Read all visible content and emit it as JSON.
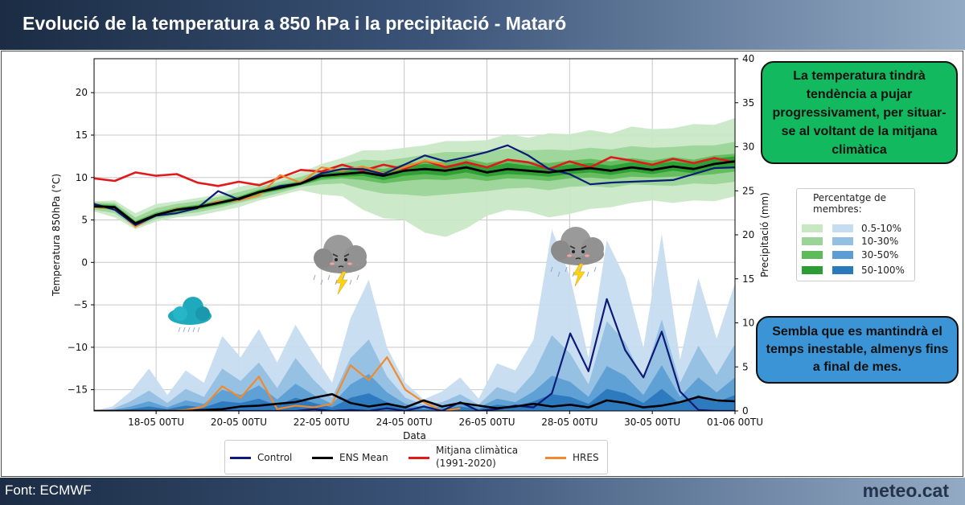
{
  "title": "Evolució de la temperatura a 850 hPa i la precipitació - Mataró",
  "footer": {
    "source": "Font: ECMWF",
    "brand": "meteo.cat"
  },
  "callouts": {
    "temperature": "La temperatura tindrà tendència a pujar progressivament, per situar-se al voltant de la mitjana climàtica",
    "precipitation": "Sembla que es mantindrà el temps inestable, almenys fins a final de mes."
  },
  "percentile_legend": {
    "title": "Percentatge de membres:",
    "rows": [
      "0.5-10%",
      "10-30%",
      "30-50%",
      "50-100%"
    ]
  },
  "series_legend": [
    {
      "label": "Control",
      "color": "#0c1a78"
    },
    {
      "label": "ENS Mean",
      "color": "#000000"
    },
    {
      "label": "Mitjana climàtica (1991-2020)",
      "label_line1": "Mitjana climàtica",
      "label_line2": "(1991-2020)",
      "color": "#e0191b"
    },
    {
      "label": "HRES",
      "color": "#f08a2c"
    }
  ],
  "icons": [
    "rain-cloud-icon",
    "thunderstorm-cloud-icon",
    "thunderstorm-cloud-icon"
  ],
  "colors": {
    "green_bands": [
      "#c8e8c4",
      "#9bd497",
      "#5fbb5a",
      "#2a9d33"
    ],
    "blue_bands": [
      "#c6dcf0",
      "#93bfe2",
      "#5c9ed4",
      "#2b78bd"
    ]
  },
  "chart_data": {
    "type": "line",
    "xlabel": "Data",
    "ylabel_left": "Temperatura 850hPa (°C)",
    "ylabel_right": "Precipitació (mm)",
    "x_range": [
      "2025-05-16T12",
      "2025-06-01T00"
    ],
    "x_ticks": [
      "18-05 00TU",
      "20-05 00TU",
      "22-05 00TU",
      "24-05 00TU",
      "26-05 00TU",
      "28-05 00TU",
      "30-05 00TU",
      "01-06 00TU"
    ],
    "y_left_range": [
      -17.5,
      24
    ],
    "y_left_ticks": [
      20,
      15,
      10,
      5,
      0,
      -5,
      -10,
      -15
    ],
    "y_right_range": [
      0,
      40
    ],
    "y_right_ticks": [
      40,
      35,
      30,
      25,
      20,
      15,
      10,
      5,
      0
    ],
    "grid": true,
    "x_days": [
      0,
      0.5,
      1,
      1.5,
      2,
      2.5,
      3,
      3.5,
      4,
      4.5,
      5,
      5.5,
      6,
      6.5,
      7,
      7.5,
      8,
      8.5,
      9,
      9.5,
      10,
      10.5,
      11,
      11.5,
      12,
      12.5,
      13,
      13.5,
      14,
      14.5,
      15,
      15.5
    ],
    "temperature_series": {
      "climatological_mean": [
        9.9,
        9.6,
        10.6,
        10.2,
        10.4,
        9.4,
        9.0,
        9.5,
        9.1,
        10.0,
        10.9,
        10.7,
        11.5,
        10.8,
        11.5,
        11.0,
        12.0,
        11.2,
        11.8,
        11.2,
        12.1,
        11.8,
        11.0,
        11.9,
        11.2,
        12.4,
        12.0,
        11.5,
        12.2,
        11.7,
        12.3,
        11.8
      ],
      "ens_mean": [
        6.6,
        6.5,
        4.6,
        5.6,
        6.2,
        6.5,
        7.0,
        7.5,
        8.3,
        8.8,
        9.3,
        10.2,
        10.4,
        10.6,
        10.2,
        10.8,
        11.0,
        10.8,
        11.2,
        10.6,
        11.0,
        10.8,
        10.6,
        10.9,
        11.1,
        10.8,
        11.2,
        10.9,
        11.3,
        11.0,
        11.6,
        11.9
      ],
      "control": [
        6.9,
        6.2,
        4.4,
        5.5,
        5.8,
        6.4,
        8.4,
        7.4,
        8.3,
        9.0,
        9.3,
        10.5,
        11.0,
        11.0,
        10.4,
        11.5,
        12.6,
        11.9,
        12.4,
        13.0,
        13.8,
        12.6,
        11.0,
        10.4,
        9.2,
        9.4,
        9.5,
        9.6,
        9.7,
        10.4,
        11.1,
        11.2
      ],
      "hres": [
        6.5,
        6.4,
        4.2,
        5.6,
        6.3,
        6.4,
        7.2,
        7.3,
        7.9,
        10.3,
        9.4,
        11.2,
        10.8,
        11.3,
        10.5,
        11.2,
        12.0,
        11.5
      ]
    },
    "temperature_percentile_bands": [
      {
        "level": "0.5-10%",
        "low": [
          6.0,
          5.3,
          3.9,
          4.8,
          5.3,
          5.5,
          6.0,
          6.5,
          7.3,
          7.9,
          8.5,
          8.0,
          7.8,
          6.2,
          5.2,
          5.0,
          3.5,
          3.0,
          4.0,
          5.5,
          6.2,
          6.0,
          5.3,
          5.7,
          6.3,
          6.5,
          7.0,
          7.3,
          7.0,
          7.3,
          7.2,
          7.8
        ],
        "high": [
          7.2,
          7.3,
          5.8,
          6.9,
          7.2,
          7.6,
          8.0,
          8.9,
          9.4,
          10.0,
          10.6,
          11.6,
          12.3,
          13.2,
          13.2,
          13.5,
          13.8,
          14.3,
          14.3,
          14.4,
          15.1,
          14.7,
          15.2,
          15.1,
          15.6,
          15.2,
          16.0,
          15.7,
          15.8,
          16.3,
          16.2,
          17.0
        ]
      },
      {
        "level": "10-30%",
        "low": [
          6.2,
          5.8,
          4.1,
          5.1,
          5.6,
          5.9,
          6.4,
          7.0,
          7.6,
          8.2,
          8.9,
          9.2,
          9.3,
          8.6,
          8.1,
          8.0,
          7.8,
          8.0,
          8.2,
          8.4,
          8.7,
          8.8,
          8.5,
          8.9,
          9.0,
          8.8,
          9.2,
          9.1,
          9.0,
          9.3,
          9.2,
          9.5
        ],
        "high": [
          7.1,
          7.0,
          5.3,
          6.4,
          6.9,
          7.2,
          7.7,
          8.3,
          8.9,
          9.5,
          10.1,
          10.9,
          11.6,
          12.1,
          12.0,
          12.3,
          12.7,
          13.0,
          13.0,
          13.1,
          13.4,
          13.2,
          13.3,
          13.2,
          13.5,
          13.3,
          13.7,
          13.5,
          13.6,
          13.8,
          13.8,
          14.2
        ]
      },
      {
        "level": "30-50%",
        "low": [
          6.4,
          6.2,
          4.3,
          5.4,
          5.9,
          6.2,
          6.7,
          7.2,
          8.0,
          8.5,
          9.1,
          9.7,
          9.9,
          9.7,
          9.3,
          9.6,
          9.8,
          9.7,
          9.9,
          9.6,
          9.9,
          9.8,
          9.6,
          9.9,
          10.0,
          9.8,
          10.1,
          10.0,
          10.1,
          10.2,
          10.4,
          10.7
        ],
        "high": [
          6.9,
          6.8,
          4.9,
          5.9,
          6.5,
          6.8,
          7.3,
          7.8,
          8.6,
          9.2,
          9.6,
          10.6,
          10.9,
          11.3,
          11.0,
          11.6,
          11.9,
          11.8,
          12.2,
          11.7,
          12.1,
          11.9,
          11.7,
          12.0,
          12.2,
          11.9,
          12.3,
          12.0,
          12.4,
          12.1,
          12.6,
          12.8
        ]
      },
      {
        "level": "50-100%",
        "low": [
          6.5,
          6.3,
          4.4,
          5.5,
          6.0,
          6.3,
          6.8,
          7.3,
          8.1,
          8.6,
          9.1,
          9.9,
          10.1,
          10.2,
          9.7,
          10.2,
          10.4,
          10.2,
          10.6,
          10.1,
          10.4,
          10.3,
          10.1,
          10.4,
          10.6,
          10.3,
          10.7,
          10.4,
          10.8,
          10.5,
          11.0,
          11.3
        ],
        "high": [
          6.8,
          6.7,
          4.8,
          5.7,
          6.4,
          6.7,
          7.2,
          7.7,
          8.5,
          9.0,
          9.5,
          10.5,
          10.7,
          11.0,
          10.7,
          11.3,
          11.6,
          11.4,
          11.8,
          11.2,
          11.7,
          11.4,
          11.2,
          11.5,
          11.7,
          11.4,
          11.8,
          11.5,
          11.9,
          11.6,
          12.2,
          12.5
        ]
      }
    ],
    "precipitation_series": {
      "control": [
        0,
        0,
        0,
        0,
        0,
        0,
        0,
        0,
        0,
        0,
        0,
        0,
        0.2,
        0,
        0.1,
        0,
        0.3,
        0,
        0.5,
        0,
        1.0,
        0,
        0.2,
        0.6,
        0.4,
        2.0,
        8.8,
        4.5,
        12.7,
        6.9,
        3.8,
        9.0,
        2.2,
        0.1,
        0,
        0
      ],
      "ens_mean": [
        0,
        0,
        0,
        0,
        0,
        0,
        0.1,
        0.2,
        0.5,
        0.6,
        0.8,
        1.0,
        1.5,
        1.9,
        0.9,
        0.5,
        0.8,
        0.4,
        1.2,
        0.5,
        0.9,
        0.6,
        0.3,
        0.5,
        0.8,
        0.5,
        0.7,
        0.4,
        1.2,
        0.9,
        0.4,
        0.6,
        1.0,
        1.6,
        1.2,
        1.1
      ],
      "hres": [
        0,
        0,
        0,
        0,
        0,
        0.1,
        0.5,
        2.8,
        1.5,
        3.9,
        0.2,
        0.6,
        0.4,
        0.8,
        5.2,
        3.5,
        6.1,
        2.4,
        1.0,
        0,
        0.3
      ]
    },
    "precipitation_percentile_bands": [
      {
        "level": "0.5-10%",
        "high": [
          0,
          0.5,
          2.2,
          4.8,
          1.8,
          4.6,
          3.2,
          8.5,
          6.1,
          9.3,
          5.5,
          9.8,
          6.4,
          3.2,
          10.5,
          14.9,
          7.2,
          3.2,
          1.3,
          2.2,
          3.8,
          1.4,
          5.4,
          4.6,
          8.1,
          20.6,
          15.2,
          6.0,
          19.4,
          15.1,
          7.2,
          20.1,
          5.8,
          15.1,
          8.2,
          14.5
        ]
      },
      {
        "level": "10-30%",
        "high": [
          0,
          0.2,
          1.1,
          2.3,
          0.9,
          2.5,
          1.6,
          4.8,
          3.4,
          5.5,
          2.6,
          6.0,
          3.5,
          1.5,
          6.0,
          8.1,
          3.9,
          1.5,
          0.7,
          1.0,
          1.9,
          0.7,
          2.7,
          2.0,
          4.3,
          8.6,
          6.5,
          3.0,
          10.2,
          7.8,
          3.6,
          10.4,
          3.2,
          7.4,
          4.1,
          7.6
        ]
      },
      {
        "level": "30-50%",
        "high": [
          0,
          0.1,
          0.5,
          1.1,
          0.4,
          1.2,
          0.8,
          2.4,
          1.8,
          2.9,
          1.3,
          3.1,
          1.8,
          0.8,
          3.0,
          4.2,
          2.1,
          0.8,
          0.4,
          0.5,
          1.0,
          0.4,
          1.4,
          1.0,
          2.2,
          4.0,
          3.3,
          1.6,
          5.1,
          4.0,
          1.8,
          5.2,
          1.6,
          3.8,
          2.1,
          3.8
        ]
      },
      {
        "level": "50-100%",
        "high": [
          0,
          0,
          0.2,
          0.5,
          0.2,
          0.6,
          0.4,
          1.1,
          0.9,
          1.4,
          0.6,
          1.5,
          0.9,
          0.4,
          1.5,
          2.0,
          1.0,
          0.4,
          0.2,
          0.2,
          0.5,
          0.2,
          0.7,
          0.5,
          1.1,
          1.9,
          1.6,
          0.8,
          2.5,
          2.0,
          0.9,
          2.5,
          0.8,
          1.8,
          1.0,
          1.8
        ]
      }
    ]
  }
}
